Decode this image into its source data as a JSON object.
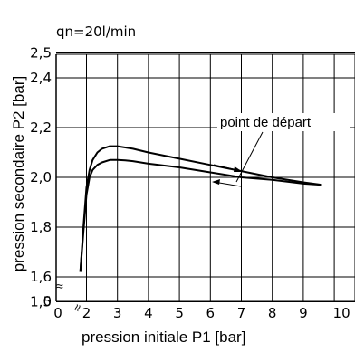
{
  "header": {
    "flow_label": "qn=20l/min"
  },
  "chart_data": {
    "type": "line",
    "title": "",
    "subtitle": "qn=20l/min",
    "xlabel": "pression initiale P1 [bar]",
    "ylabel": "pression secondaire P2 [bar]",
    "xlim": [
      2,
      10
    ],
    "ylim": [
      1.45,
      2.55
    ],
    "x_tick_labels": [
      "0",
      "2",
      "3",
      "4",
      "5",
      "6",
      "7",
      "8",
      "9",
      "10"
    ],
    "y_tick_labels": [
      "0",
      "1,5",
      "1,6",
      "1,8",
      "2,0",
      "2,2",
      "2,4",
      "2,5"
    ],
    "y_ticks": [
      1.5,
      1.6,
      1.8,
      2.0,
      2.2,
      2.4,
      2.5
    ],
    "axis_break_symbol": "≈",
    "grid": true,
    "annotations": [
      {
        "text": "point de départ"
      }
    ],
    "series": [
      {
        "x": [
          1.8,
          1.9,
          2.0,
          2.1,
          2.2,
          2.35,
          2.5,
          2.75,
          3.0,
          3.25,
          3.5,
          4.0,
          5.0,
          6.0,
          7.0,
          8.0,
          9.0,
          9.6
        ],
        "y": [
          1.62,
          1.8,
          1.96,
          2.03,
          2.07,
          2.1,
          2.115,
          2.125,
          2.125,
          2.12,
          2.115,
          2.1,
          2.075,
          2.05,
          2.025,
          2.0,
          1.98,
          1.97
        ]
      },
      {
        "x": [
          1.8,
          1.9,
          2.0,
          2.1,
          2.2,
          2.35,
          2.5,
          2.75,
          3.0,
          3.25,
          3.5,
          4.0,
          5.0,
          6.0,
          7.0,
          8.0,
          9.0,
          9.6
        ],
        "y": [
          1.62,
          1.78,
          1.93,
          2.0,
          2.03,
          2.05,
          2.06,
          2.07,
          2.07,
          2.068,
          2.065,
          2.055,
          2.04,
          2.02,
          2.0,
          1.99,
          1.975,
          1.97
        ]
      }
    ]
  }
}
